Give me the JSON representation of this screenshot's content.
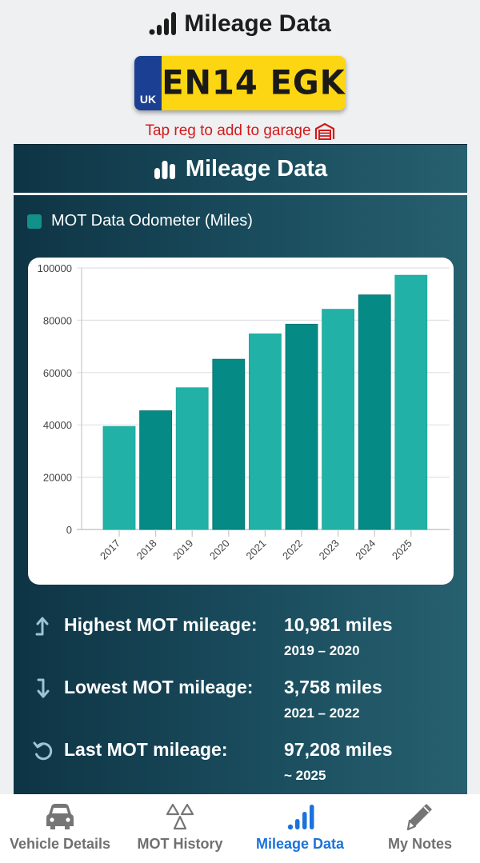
{
  "header": {
    "title": "Mileage Data",
    "icon": "signal-bars-icon"
  },
  "plate": {
    "country": "UK",
    "registration": "EN14 EGK"
  },
  "tap_hint": {
    "text": "Tap reg to add to garage",
    "icon": "garage-icon"
  },
  "card": {
    "title": "Mileage Data",
    "icon": "bar-chart-icon",
    "legend_label": "MOT Data Odometer (Miles)"
  },
  "colors": {
    "bar_light": "#22b1a7",
    "bar_dark": "#058a85",
    "legend": "#12908a",
    "active_nav": "#1a73d9",
    "hint_red": "#d31a1a"
  },
  "chart_data": {
    "type": "bar",
    "title": "",
    "xlabel": "",
    "ylabel": "",
    "legend": "MOT Data Odometer (Miles)",
    "legend_position": "top-left",
    "categories": [
      "2017",
      "2018",
      "2019",
      "2020",
      "2021",
      "2022",
      "2023",
      "2024",
      "2025"
    ],
    "values": [
      39400,
      45400,
      54200,
      65100,
      74800,
      78500,
      84200,
      89700,
      97208
    ],
    "ylim": [
      0,
      100000
    ],
    "yticks": [
      "0",
      "20000",
      "40000",
      "60000",
      "80000",
      "100000"
    ],
    "ytick_values": [
      0,
      20000,
      40000,
      60000,
      80000,
      100000
    ],
    "grid": true
  },
  "stats": [
    {
      "icon": "trend-up-arrow-icon",
      "label": "Highest MOT mileage:",
      "value": "10,981 miles",
      "sub": "2019 – 2020"
    },
    {
      "icon": "trend-down-arrow-icon",
      "label": "Lowest MOT mileage:",
      "value": "3,758 miles",
      "sub": "2021 – 2022"
    },
    {
      "icon": "history-icon",
      "label": "Last MOT mileage:",
      "value": "97,208 miles",
      "sub": "~ 2025"
    }
  ],
  "nav": [
    {
      "label": "Vehicle Details",
      "icon": "car-icon",
      "active": false
    },
    {
      "label": "MOT History",
      "icon": "mot-triangles-icon",
      "active": false
    },
    {
      "label": "Mileage Data",
      "icon": "signal-bars-icon",
      "active": true
    },
    {
      "label": "My Notes",
      "icon": "pencil-icon",
      "active": false
    }
  ]
}
